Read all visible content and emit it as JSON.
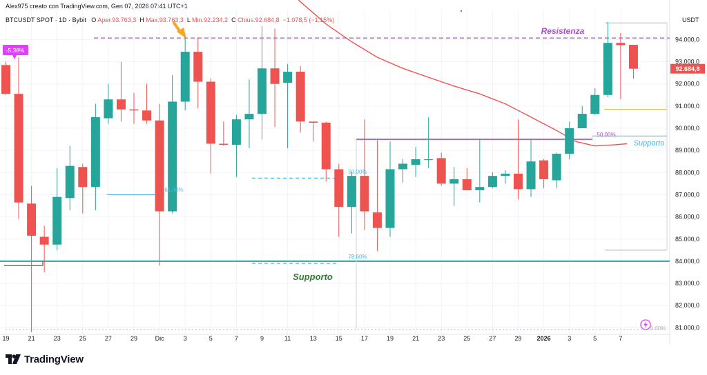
{
  "header": {
    "author_line": "Alex975 creato con TradingView.com, Gen 07, 2026 07:41 UTC+1",
    "symbol_line": "BTCUSDT SPOT · 1D · Bybit",
    "ohlc": [
      {
        "label": "O",
        "value": "Aper.93.763,3"
      },
      {
        "label": "H",
        "value": "Max.93.763,3"
      },
      {
        "label": "L",
        "value": "Min.92.234,2"
      },
      {
        "label": "C",
        "value": "Chius.92.684,8"
      },
      {
        "label": "",
        "value": "−1.078,5 (−1,15%)"
      }
    ]
  },
  "brand": {
    "name": "TradingView"
  },
  "colors": {
    "up": "#26a69a",
    "down": "#ef5350",
    "ma": "#ef5350",
    "resistance": "#b247d6",
    "support": "#26a69a",
    "fib": "#4db6e4",
    "grid": "#f0f3fa",
    "last_price": "#ef5350"
  },
  "chart_data": {
    "type": "candlestick",
    "currency": "USDT",
    "ylim": [
      80700,
      95350
    ],
    "y_ticks": [
      "81.000,0",
      "82.000,0",
      "83.000,0",
      "84.000,0",
      "85.000,0",
      "86.000,0",
      "87.000,0",
      "88.000,0",
      "89.000,0",
      "90.000,0",
      "91.000,0",
      "92.000,0",
      "93.000,0",
      "94.000,0"
    ],
    "y_tick_values": [
      81000,
      82000,
      83000,
      84000,
      85000,
      86000,
      87000,
      88000,
      89000,
      90000,
      91000,
      92000,
      93000,
      94000
    ],
    "x_ticks": [
      {
        "i": 0,
        "label": "19"
      },
      {
        "i": 2,
        "label": "21"
      },
      {
        "i": 4,
        "label": "23"
      },
      {
        "i": 6,
        "label": "25"
      },
      {
        "i": 8,
        "label": "27"
      },
      {
        "i": 10,
        "label": "29"
      },
      {
        "i": 12,
        "label": "Dic"
      },
      {
        "i": 14,
        "label": "3"
      },
      {
        "i": 16,
        "label": "5"
      },
      {
        "i": 18,
        "label": "7"
      },
      {
        "i": 20,
        "label": "9"
      },
      {
        "i": 22,
        "label": "11"
      },
      {
        "i": 24,
        "label": "13"
      },
      {
        "i": 26,
        "label": "15"
      },
      {
        "i": 28,
        "label": "17"
      },
      {
        "i": 30,
        "label": "19"
      },
      {
        "i": 32,
        "label": "21"
      },
      {
        "i": 34,
        "label": "23"
      },
      {
        "i": 36,
        "label": "25"
      },
      {
        "i": 38,
        "label": "27"
      },
      {
        "i": 40,
        "label": "29"
      },
      {
        "i": 42,
        "label": "2026"
      },
      {
        "i": 44,
        "label": "3"
      },
      {
        "i": 46,
        "label": "5"
      },
      {
        "i": 48,
        "label": "7"
      }
    ],
    "candles": [
      {
        "o": 92850,
        "h": 93000,
        "l": 91500,
        "c": 91550
      },
      {
        "o": 91550,
        "h": 93200,
        "l": 85900,
        "c": 86650
      },
      {
        "o": 86600,
        "h": 87400,
        "l": 80800,
        "c": 85150
      },
      {
        "o": 85100,
        "h": 85600,
        "l": 83500,
        "c": 84750
      },
      {
        "o": 84750,
        "h": 88200,
        "l": 84500,
        "c": 86900
      },
      {
        "o": 86850,
        "h": 89200,
        "l": 86300,
        "c": 88300
      },
      {
        "o": 88250,
        "h": 88400,
        "l": 86150,
        "c": 87350
      },
      {
        "o": 87350,
        "h": 91100,
        "l": 86300,
        "c": 90500
      },
      {
        "o": 90450,
        "h": 92000,
        "l": 90200,
        "c": 91300
      },
      {
        "o": 91300,
        "h": 93000,
        "l": 90300,
        "c": 90850
      },
      {
        "o": 90850,
        "h": 91600,
        "l": 90200,
        "c": 90800
      },
      {
        "o": 90800,
        "h": 92000,
        "l": 90200,
        "c": 90350
      },
      {
        "o": 90350,
        "h": 91100,
        "l": 83800,
        "c": 86250
      },
      {
        "o": 86250,
        "h": 92400,
        "l": 86150,
        "c": 91200
      },
      {
        "o": 91200,
        "h": 94100,
        "l": 90800,
        "c": 93450
      },
      {
        "o": 93450,
        "h": 94100,
        "l": 90900,
        "c": 92100
      },
      {
        "o": 92100,
        "h": 92250,
        "l": 87950,
        "c": 89300
      },
      {
        "o": 89300,
        "h": 90300,
        "l": 89200,
        "c": 89250
      },
      {
        "o": 89250,
        "h": 90600,
        "l": 87800,
        "c": 90400
      },
      {
        "o": 90400,
        "h": 92200,
        "l": 89100,
        "c": 90650
      },
      {
        "o": 90650,
        "h": 94600,
        "l": 89500,
        "c": 92700
      },
      {
        "o": 92700,
        "h": 94500,
        "l": 90050,
        "c": 92000
      },
      {
        "o": 92050,
        "h": 92900,
        "l": 89100,
        "c": 92550
      },
      {
        "o": 92550,
        "h": 92800,
        "l": 89800,
        "c": 90300
      },
      {
        "o": 90300,
        "h": 90300,
        "l": 89400,
        "c": 90250
      },
      {
        "o": 90250,
        "h": 90300,
        "l": 87600,
        "c": 88150
      },
      {
        "o": 88150,
        "h": 88400,
        "l": 85100,
        "c": 86450
      },
      {
        "o": 86450,
        "h": 88000,
        "l": 85250,
        "c": 87850
      },
      {
        "o": 87850,
        "h": 90400,
        "l": 85400,
        "c": 86250
      },
      {
        "o": 86200,
        "h": 89450,
        "l": 84450,
        "c": 85500
      },
      {
        "o": 85500,
        "h": 89400,
        "l": 85100,
        "c": 88150
      },
      {
        "o": 88150,
        "h": 88600,
        "l": 87550,
        "c": 88400
      },
      {
        "o": 88350,
        "h": 89150,
        "l": 87800,
        "c": 88600
      },
      {
        "o": 88600,
        "h": 90500,
        "l": 88200,
        "c": 88600
      },
      {
        "o": 88650,
        "h": 88900,
        "l": 87400,
        "c": 87500
      },
      {
        "o": 87500,
        "h": 88250,
        "l": 86500,
        "c": 87700
      },
      {
        "o": 87700,
        "h": 88200,
        "l": 87200,
        "c": 87200
      },
      {
        "o": 87200,
        "h": 89500,
        "l": 86650,
        "c": 87350
      },
      {
        "o": 87350,
        "h": 88000,
        "l": 87300,
        "c": 87850
      },
      {
        "o": 87850,
        "h": 88100,
        "l": 87500,
        "c": 87950
      },
      {
        "o": 87950,
        "h": 90400,
        "l": 86800,
        "c": 87250
      },
      {
        "o": 87250,
        "h": 89500,
        "l": 86900,
        "c": 88500
      },
      {
        "o": 88550,
        "h": 88600,
        "l": 87300,
        "c": 87700
      },
      {
        "o": 87650,
        "h": 88900,
        "l": 87300,
        "c": 88850
      },
      {
        "o": 88850,
        "h": 90300,
        "l": 88600,
        "c": 90000
      },
      {
        "o": 90000,
        "h": 91000,
        "l": 90000,
        "c": 90650
      },
      {
        "o": 90650,
        "h": 91800,
        "l": 90600,
        "c": 91500
      },
      {
        "o": 91500,
        "h": 94800,
        "l": 91400,
        "c": 93850
      },
      {
        "o": 93850,
        "h": 94300,
        "l": 91300,
        "c": 93750
      },
      {
        "o": 93763.3,
        "h": 93763.3,
        "l": 92234.2,
        "c": 92684.8
      }
    ],
    "moving_average": [
      {
        "i": 21.5,
        "v": 96600
      },
      {
        "i": 23,
        "v": 95700
      },
      {
        "i": 25,
        "v": 94700
      },
      {
        "i": 27,
        "v": 93900
      },
      {
        "i": 29,
        "v": 93200
      },
      {
        "i": 31,
        "v": 92700
      },
      {
        "i": 33,
        "v": 92300
      },
      {
        "i": 35,
        "v": 91900
      },
      {
        "i": 37,
        "v": 91550
      },
      {
        "i": 39,
        "v": 91100
      },
      {
        "i": 41,
        "v": 90500
      },
      {
        "i": 43,
        "v": 89900
      },
      {
        "i": 44.5,
        "v": 89400
      },
      {
        "i": 46,
        "v": 89200
      },
      {
        "i": 47.5,
        "v": 89250
      },
      {
        "i": 48.5,
        "v": 89300
      }
    ],
    "annotations": {
      "resistance": {
        "label": "Resistenza",
        "price": 94070
      },
      "support_main": {
        "label": "Supporto",
        "price": 84000
      },
      "support_right": {
        "label": "Supporto",
        "price": 89650
      },
      "pct_badge": {
        "label": "-5.38%",
        "price": 93500
      },
      "fib_levels": [
        {
          "label": "61.80%",
          "price": 87000
        },
        {
          "label": "50.00%",
          "price": 87750
        },
        {
          "label": "78.60%",
          "price": 83900
        },
        {
          "label": "50.00%",
          "price": 89800
        },
        {
          "label": "0.00%",
          "price": 80900
        }
      ],
      "horizontal_segment": {
        "price": 89500
      },
      "last_price": {
        "label": "92.684,8",
        "price": 92684.8
      },
      "orange_level": {
        "price": 90850
      },
      "gray_levels": [
        {
          "price": 94750
        },
        {
          "price": 84500
        }
      ]
    }
  }
}
